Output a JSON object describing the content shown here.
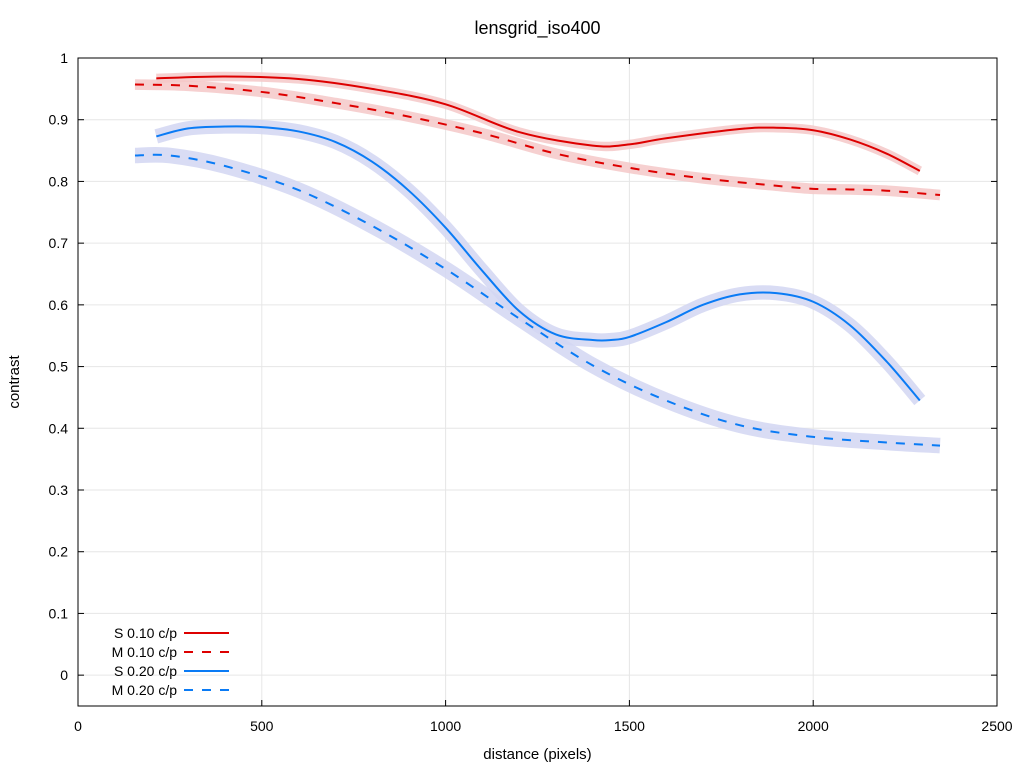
{
  "chart_data": {
    "type": "line",
    "title": "lensgrid_iso400",
    "xlabel": "distance (pixels)",
    "ylabel": "contrast",
    "xlim": [
      0,
      2500
    ],
    "ylim": [
      -0.05,
      1.0
    ],
    "xticks": [
      0,
      500,
      1000,
      1500,
      2000,
      2500
    ],
    "yticks": [
      0,
      0.1,
      0.2,
      0.3,
      0.4,
      0.5,
      0.6,
      0.7,
      0.8,
      0.9,
      1
    ],
    "xtick_labels": [
      "0",
      "500",
      "1000",
      "1500",
      "2000",
      "2500"
    ],
    "ytick_labels": [
      "0",
      "0.1",
      "0.2",
      "0.3",
      "0.4",
      "0.5",
      "0.6",
      "0.7",
      "0.8",
      "0.9",
      "1"
    ],
    "grid": true,
    "legend_position": "bottom-left",
    "series": [
      {
        "name": "S 0.10 c/p",
        "color": "#dd0000",
        "band_color": "#f4c8c8",
        "dash": "solid",
        "band": 0.006,
        "x": [
          213,
          400,
          600,
          800,
          1000,
          1200,
          1400,
          1500,
          1600,
          1800,
          1900,
          2000,
          2100,
          2200,
          2290
        ],
        "y": [
          0.967,
          0.97,
          0.966,
          0.95,
          0.925,
          0.88,
          0.858,
          0.86,
          0.87,
          0.885,
          0.887,
          0.883,
          0.868,
          0.845,
          0.817
        ]
      },
      {
        "name": "M 0.10 c/p",
        "color": "#dd0000",
        "band_color": "#f4c8c8",
        "dash": "dashed",
        "band": 0.007,
        "x": [
          155,
          300,
          500,
          700,
          900,
          1100,
          1300,
          1500,
          1700,
          1900,
          2000,
          2100,
          2200,
          2345
        ],
        "y": [
          0.957,
          0.955,
          0.945,
          0.927,
          0.905,
          0.878,
          0.845,
          0.822,
          0.805,
          0.793,
          0.788,
          0.787,
          0.785,
          0.778
        ]
      },
      {
        "name": "S 0.20 c/p",
        "color": "#0a7bf5",
        "band_color": "#d2d6f2",
        "dash": "solid",
        "band": 0.01,
        "x": [
          213,
          300,
          400,
          500,
          600,
          700,
          800,
          900,
          1000,
          1100,
          1200,
          1300,
          1400,
          1450,
          1500,
          1600,
          1700,
          1800,
          1900,
          2000,
          2100,
          2200,
          2290
        ],
        "y": [
          0.873,
          0.886,
          0.889,
          0.888,
          0.881,
          0.864,
          0.832,
          0.785,
          0.725,
          0.655,
          0.59,
          0.552,
          0.543,
          0.543,
          0.548,
          0.572,
          0.6,
          0.617,
          0.619,
          0.605,
          0.567,
          0.508,
          0.445
        ]
      },
      {
        "name": "M 0.20 c/p",
        "color": "#0a7bf5",
        "band_color": "#d2d6f2",
        "dash": "dashed",
        "band": 0.011,
        "x": [
          155,
          250,
          400,
          600,
          800,
          1000,
          1200,
          1400,
          1600,
          1800,
          2000,
          2200,
          2345
        ],
        "y": [
          0.842,
          0.842,
          0.825,
          0.786,
          0.728,
          0.658,
          0.578,
          0.502,
          0.445,
          0.405,
          0.386,
          0.377,
          0.372
        ]
      }
    ]
  }
}
